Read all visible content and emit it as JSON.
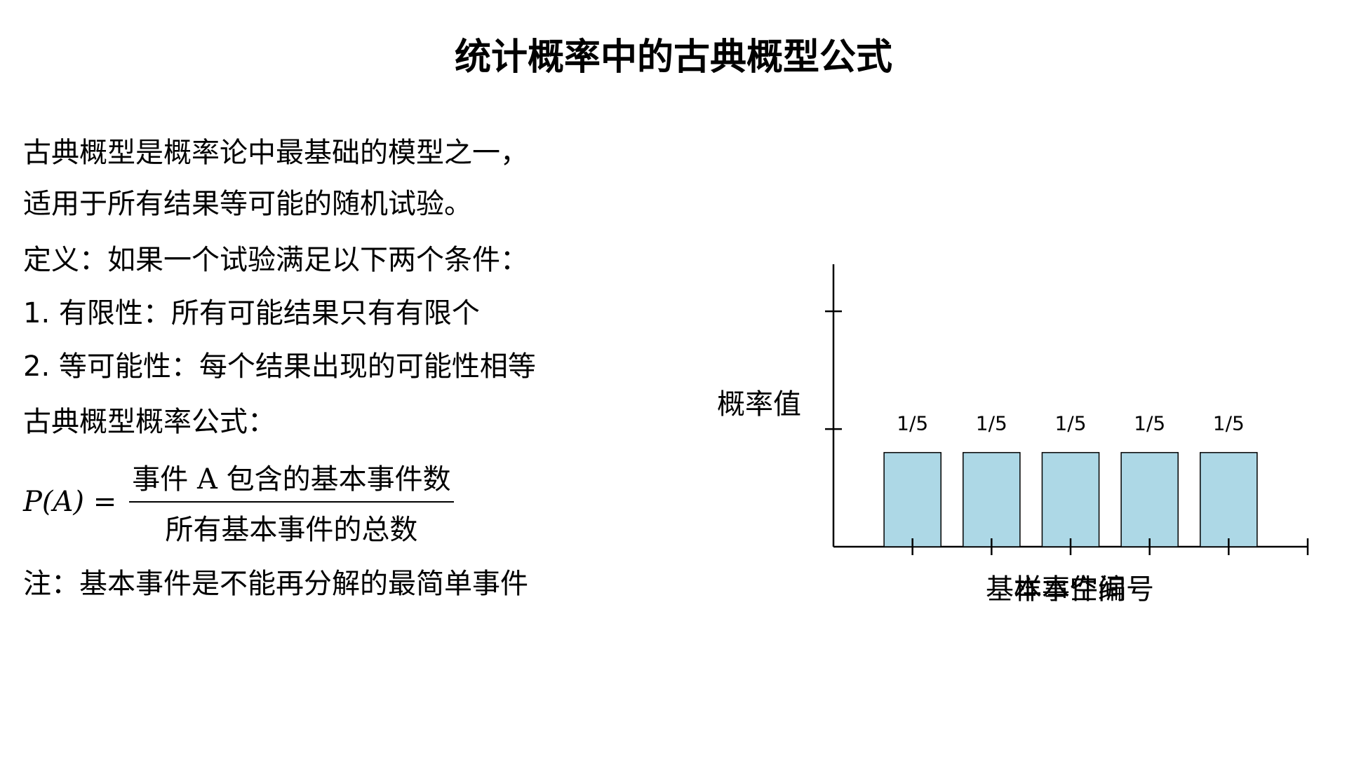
{
  "title": "统计概率中的古典概型公式",
  "paragraphs": [
    "古典概型是概率论中最基础的模型之一，",
    "适用于所有结果等可能的随机试验。",
    "定义：如果一个试验满足以下两个条件：",
    "1. 有限性：所有可能结果只有有限个",
    "2. 等可能性：每个结果出现的可能性相等",
    "古典概型概率公式："
  ],
  "formula": {
    "lhs": "P(A) =",
    "numerator": "事件 A 包含的基本事件数",
    "denominator": "所有基本事件的总数"
  },
  "note": "注：基本事件是不能再分解的最简单事件",
  "chart_data": {
    "type": "bar",
    "x": [
      1,
      2,
      3,
      4,
      5
    ],
    "values": [
      0.2,
      0.2,
      0.2,
      0.2,
      0.2
    ],
    "value_labels": [
      "1/5",
      "1/5",
      "1/5",
      "1/5",
      "1/5"
    ],
    "color": "#add8e6",
    "xlim": [
      0,
      6
    ],
    "xticks": [
      1,
      2,
      3,
      4,
      5,
      6
    ],
    "ylim": [
      0,
      0.6
    ],
    "yticks": [
      0.25,
      0.5
    ],
    "show_tick_labels": false,
    "x_label": "基本事件编号",
    "x_annotation": "样本空间",
    "y_label": "概率值"
  }
}
